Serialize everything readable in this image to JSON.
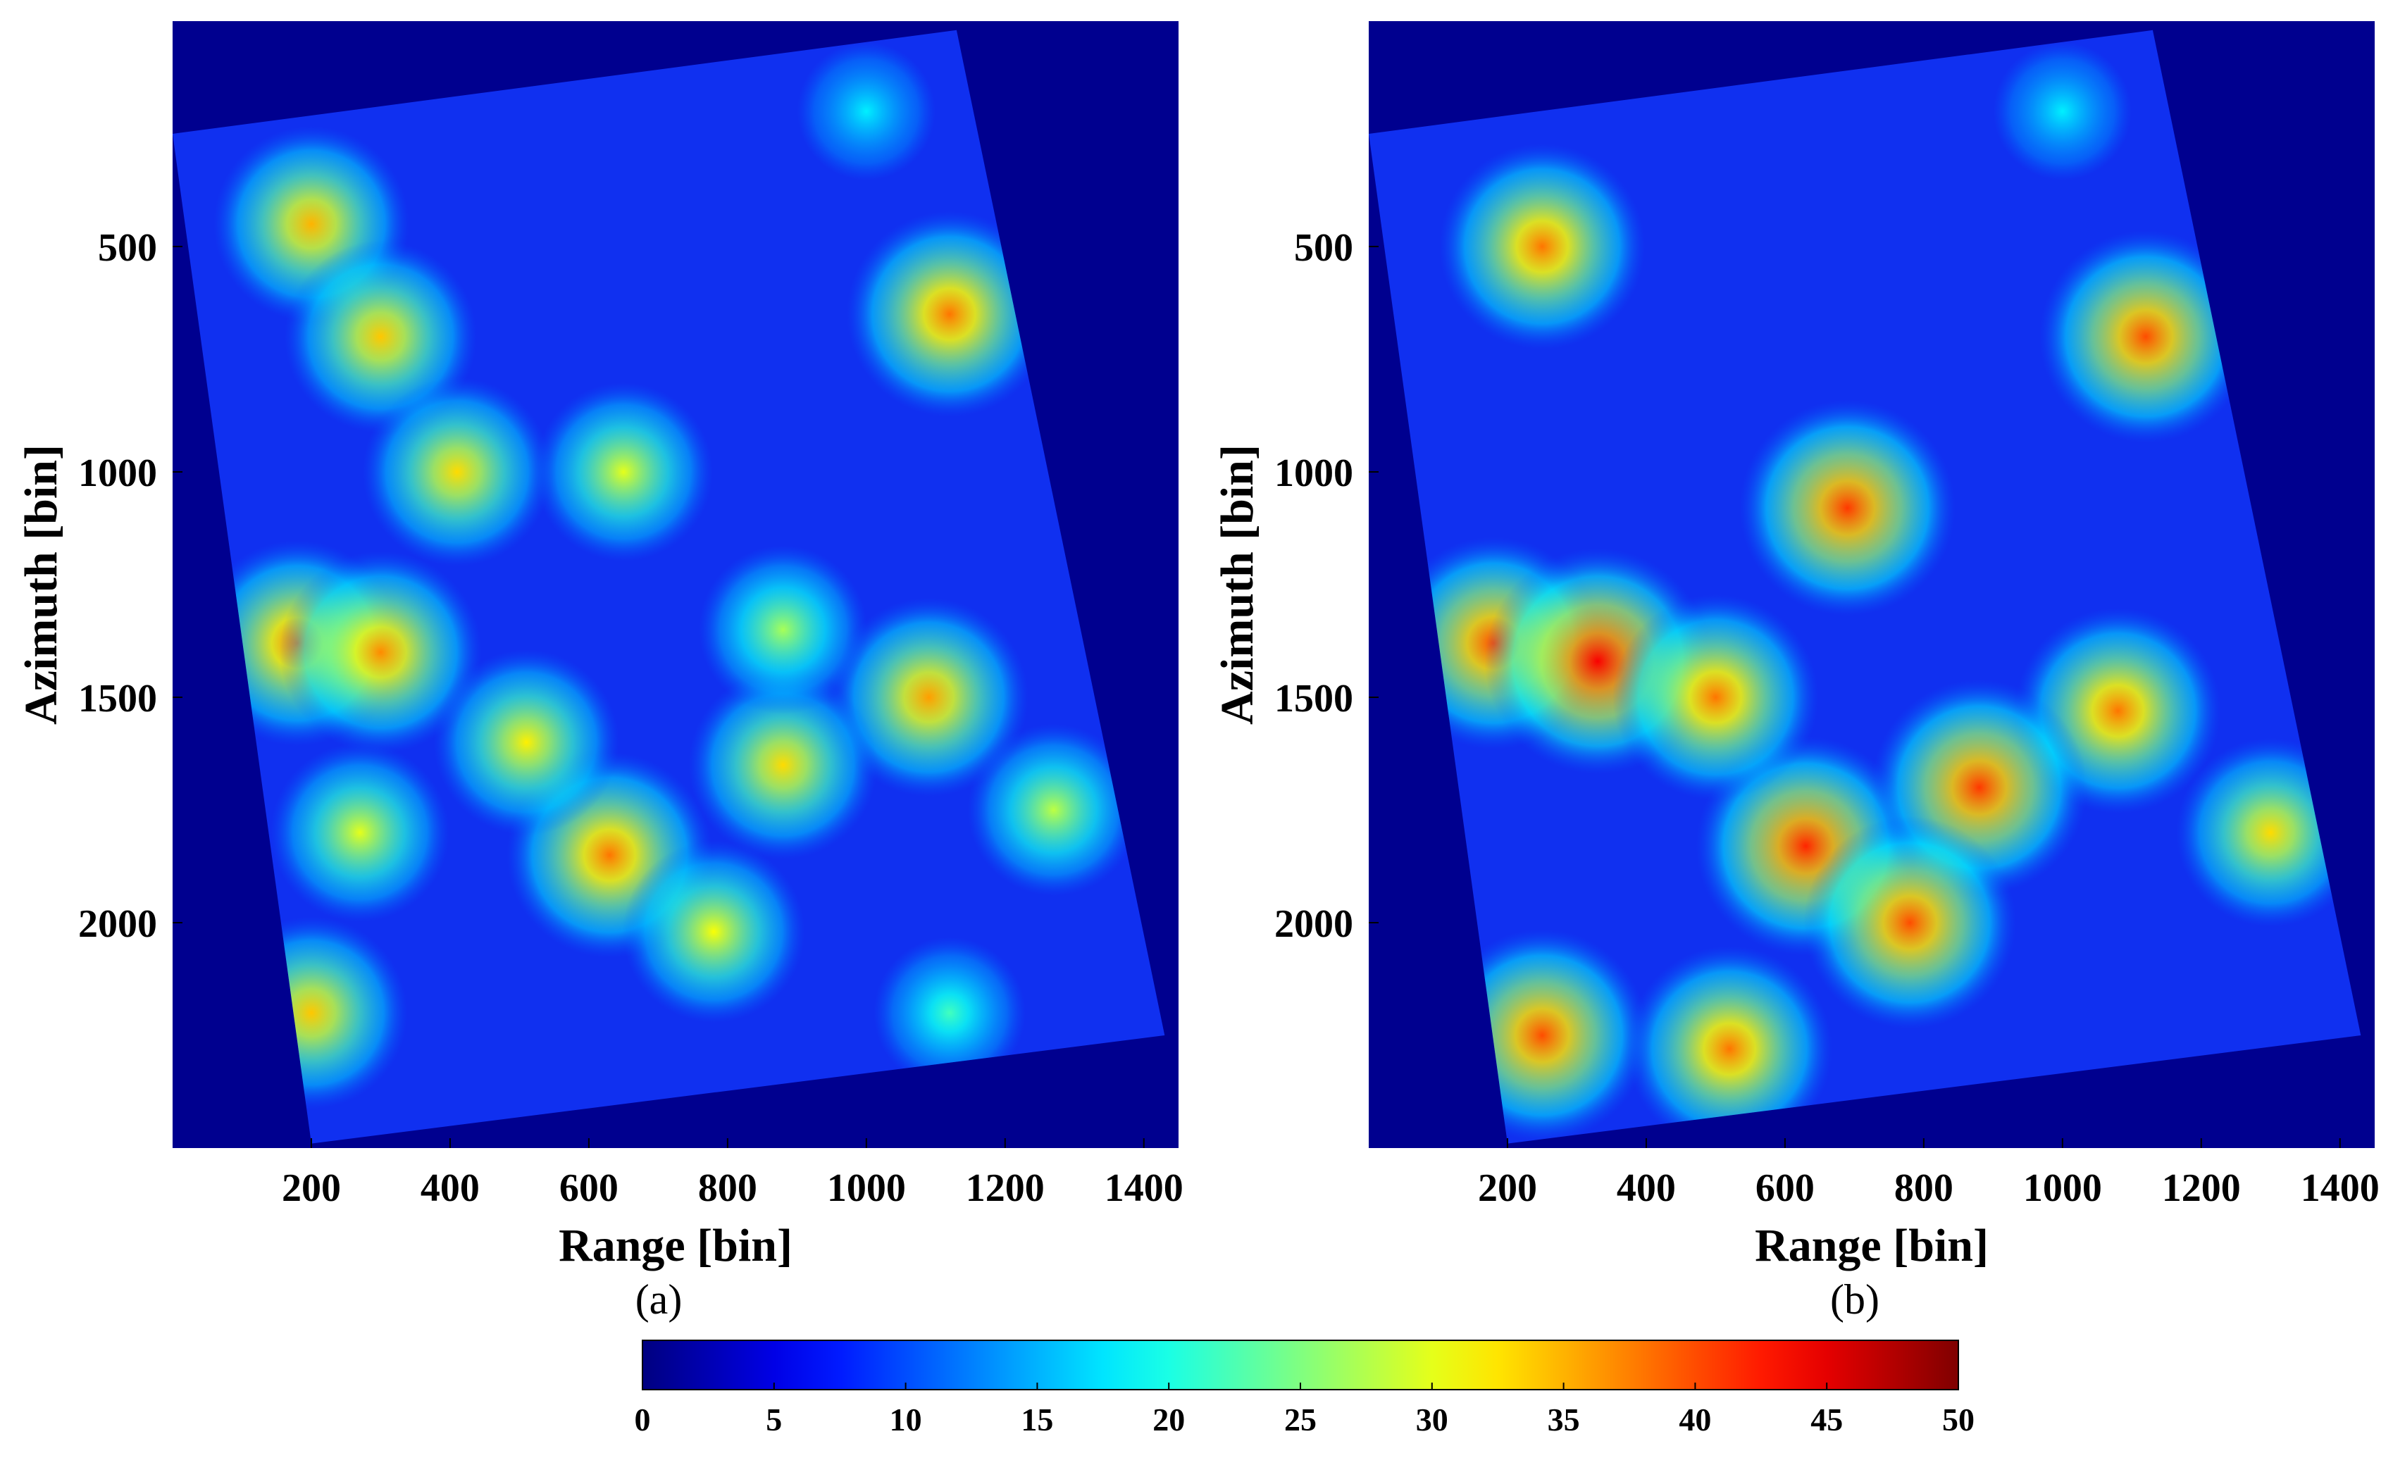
{
  "chart_data": [
    {
      "type": "heatmap",
      "caption": "(a)",
      "xlabel": "Range [bin]",
      "ylabel": "Azimuth [bin]",
      "xlim": [
        0,
        1450
      ],
      "ylim": [
        2500,
        0
      ],
      "xticks": [
        "200",
        "400",
        "600",
        "800",
        "1000",
        "1200",
        "1400"
      ],
      "yticks": [
        "500",
        "1000",
        "1500",
        "2000"
      ],
      "footprint_corners": [
        [
          0,
          250
        ],
        [
          1130,
          20
        ],
        [
          1430,
          2250
        ],
        [
          200,
          2490
        ]
      ],
      "hotspots": [
        {
          "range": 180,
          "azimuth": 1380,
          "value": 38
        },
        {
          "range": 300,
          "azimuth": 1400,
          "value": 37
        },
        {
          "range": 200,
          "azimuth": 450,
          "value": 35
        },
        {
          "range": 300,
          "azimuth": 700,
          "value": 34
        },
        {
          "range": 630,
          "azimuth": 1850,
          "value": 38
        },
        {
          "range": 1120,
          "azimuth": 650,
          "value": 38
        },
        {
          "range": 1090,
          "azimuth": 1500,
          "value": 36
        },
        {
          "range": 880,
          "azimuth": 1650,
          "value": 33
        },
        {
          "range": 410,
          "azimuth": 1000,
          "value": 33
        },
        {
          "range": 200,
          "azimuth": 2200,
          "value": 34
        },
        {
          "range": 780,
          "azimuth": 2020,
          "value": 31
        },
        {
          "range": 510,
          "azimuth": 1600,
          "value": 32
        },
        {
          "range": 270,
          "azimuth": 1800,
          "value": 30
        },
        {
          "range": 650,
          "azimuth": 1000,
          "value": 30
        },
        {
          "range": 1270,
          "azimuth": 1750,
          "value": 28
        },
        {
          "range": 880,
          "azimuth": 1350,
          "value": 27
        },
        {
          "range": 1000,
          "azimuth": 200,
          "value": 18
        },
        {
          "range": 1120,
          "azimuth": 2200,
          "value": 22
        }
      ]
    },
    {
      "type": "heatmap",
      "caption": "(b)",
      "xlabel": "Range [bin]",
      "ylabel": "Azimuth [bin]",
      "xlim": [
        0,
        1450
      ],
      "ylim": [
        2500,
        0
      ],
      "xticks": [
        "200",
        "400",
        "600",
        "800",
        "1000",
        "1200",
        "1400"
      ],
      "yticks": [
        "500",
        "1000",
        "1500",
        "2000"
      ],
      "footprint_corners": [
        [
          0,
          250
        ],
        [
          1130,
          20
        ],
        [
          1430,
          2250
        ],
        [
          200,
          2490
        ]
      ],
      "hotspots": [
        {
          "range": 180,
          "azimuth": 1380,
          "value": 40
        },
        {
          "range": 330,
          "azimuth": 1420,
          "value": 44
        },
        {
          "range": 250,
          "azimuth": 500,
          "value": 38
        },
        {
          "range": 630,
          "azimuth": 1830,
          "value": 42
        },
        {
          "range": 1120,
          "azimuth": 700,
          "value": 40
        },
        {
          "range": 1080,
          "azimuth": 1530,
          "value": 38
        },
        {
          "range": 880,
          "azimuth": 1700,
          "value": 41
        },
        {
          "range": 690,
          "azimuth": 1080,
          "value": 41
        },
        {
          "range": 500,
          "azimuth": 1500,
          "value": 38
        },
        {
          "range": 780,
          "azimuth": 2000,
          "value": 40
        },
        {
          "range": 250,
          "azimuth": 2250,
          "value": 40
        },
        {
          "range": 1300,
          "azimuth": 1800,
          "value": 33
        },
        {
          "range": 520,
          "azimuth": 2280,
          "value": 38
        },
        {
          "range": 1000,
          "azimuth": 200,
          "value": 18
        }
      ]
    }
  ],
  "colorbar": {
    "range": [
      0,
      50
    ],
    "ticks": [
      "0",
      "5",
      "10",
      "15",
      "20",
      "25",
      "30",
      "35",
      "40",
      "45",
      "50"
    ],
    "colormap": "jet"
  }
}
